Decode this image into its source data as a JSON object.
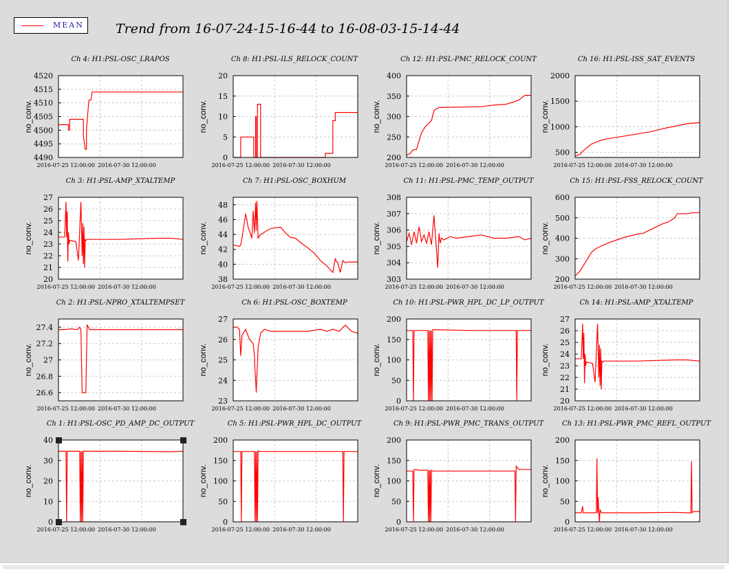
{
  "legend": {
    "label": "MEAN",
    "color": "#ff0000"
  },
  "title": "Trend from 16-07-24-15-16-44 to 16-08-03-15-14-44",
  "chart_data": [
    {
      "type": "line",
      "channel": "Ch 4: H1:PSL-OSC_LRAPOS",
      "ylabel": "no_conv.",
      "yticks": [
        "4520",
        "4515",
        "4510",
        "4505",
        "4500",
        "4495",
        "4490"
      ],
      "ylim": [
        4490,
        4520
      ],
      "xticks": [
        "2016-07-25 12:00:00",
        "2016-07-30 12:00:00"
      ],
      "series": [
        {
          "color": "#ff0000",
          "x": [
            0,
            0.08,
            0.08,
            0.09,
            0.09,
            0.1,
            0.1,
            0.2,
            0.2,
            0.215,
            0.225,
            0.225,
            0.235,
            0.245,
            0.26,
            0.27,
            0.27,
            1
          ],
          "y": [
            4502,
            4502,
            4500,
            4500,
            4504,
            4504,
            4504,
            4504,
            4498,
            4493,
            4493,
            4500,
            4506,
            4511,
            4511,
            4514,
            4514,
            4514
          ]
        }
      ]
    },
    {
      "type": "line",
      "channel": "Ch 8: H1:PSL-ILS_RELOCK_COUNT",
      "ylabel": "no_conv.",
      "yticks": [
        "20",
        "15",
        "10",
        "5",
        "0"
      ],
      "ylim": [
        0,
        20
      ],
      "xticks": [
        "2016-07-25 12:00:00",
        "2016-07-30 12:00:00"
      ],
      "series": [
        {
          "color": "#ff0000",
          "x": [
            0,
            0.06,
            0.06,
            0.165,
            0.165,
            0.18,
            0.18,
            0.185,
            0.185,
            0.195,
            0.195,
            0.22,
            0.22,
            0.74,
            0.74,
            0.8,
            0.8,
            0.82,
            0.82,
            1
          ],
          "y": [
            0,
            0,
            5,
            5,
            0,
            0,
            10,
            10,
            0,
            0,
            13,
            13,
            0,
            0,
            1,
            1,
            9,
            9,
            11,
            11
          ]
        }
      ]
    },
    {
      "type": "line",
      "channel": "Ch 12: H1:PSL-PMC_RELOCK_COUNT",
      "ylabel": "no_conv.",
      "yticks": [
        "400",
        "350",
        "300",
        "250",
        "200"
      ],
      "ylim": [
        200,
        400
      ],
      "xticks": [
        "2016-07-25 12:00:00",
        "2016-07-30 12:00:00"
      ],
      "series": [
        {
          "color": "#ff0000",
          "x": [
            0,
            0.03,
            0.05,
            0.08,
            0.1,
            0.12,
            0.15,
            0.2,
            0.22,
            0.26,
            0.6,
            0.7,
            0.8,
            0.85,
            0.9,
            0.95,
            1
          ],
          "y": [
            205,
            210,
            218,
            220,
            240,
            260,
            275,
            290,
            315,
            322,
            324,
            328,
            330,
            335,
            340,
            352,
            352
          ]
        }
      ]
    },
    {
      "type": "line",
      "channel": "Ch 16: H1:PSL-ISS_SAT_EVENTS",
      "ylabel": "no_conv.",
      "yticks": [
        "2000",
        "1500",
        "1000",
        "500"
      ],
      "ylim": [
        400,
        2000
      ],
      "xticks": [
        "2016-07-25 12:00:00",
        "2016-07-30 12:00:00"
      ],
      "series": [
        {
          "color": "#ff0000",
          "x": [
            0,
            0.04,
            0.06,
            0.08,
            0.1,
            0.13,
            0.17,
            0.2,
            0.25,
            0.3,
            0.4,
            0.5,
            0.6,
            0.7,
            0.8,
            0.9,
            1
          ],
          "y": [
            430,
            460,
            520,
            560,
            600,
            660,
            700,
            730,
            760,
            780,
            820,
            860,
            900,
            960,
            1010,
            1060,
            1080
          ]
        }
      ]
    },
    {
      "type": "line",
      "channel": "Ch 3: H1:PSL-AMP_XTALTEMP",
      "ylabel": "no_conv.",
      "yticks": [
        "27",
        "26",
        "25",
        "24",
        "23",
        "22",
        "21",
        "20"
      ],
      "ylim": [
        20,
        27
      ],
      "xticks": [
        "2016-07-25 12:00:00",
        "2016-07-30 12:00:00"
      ],
      "series": [
        {
          "color": "#ff0000",
          "x": [
            0,
            0.05,
            0.06,
            0.065,
            0.07,
            0.075,
            0.08,
            0.085,
            0.09,
            0.1,
            0.14,
            0.16,
            0.18,
            0.19,
            0.195,
            0.2,
            0.205,
            0.21,
            0.215,
            0.22,
            0.23,
            0.5,
            0.8,
            0.9,
            1
          ],
          "y": [
            23.6,
            23.6,
            26.6,
            23.6,
            25.8,
            21.5,
            24,
            23,
            23.3,
            23.3,
            23.2,
            21.6,
            26.6,
            22,
            24.8,
            21.3,
            24.5,
            21,
            23.4,
            23.3,
            23.4,
            23.4,
            23.5,
            23.5,
            23.4
          ]
        }
      ]
    },
    {
      "type": "line",
      "channel": "Ch 7: H1:PSL-OSC_BOXHUM",
      "ylabel": "no_conv.",
      "yticks": [
        "48",
        "46",
        "44",
        "42",
        "40",
        "38"
      ],
      "ylim": [
        38,
        49
      ],
      "xticks": [
        "2016-07-25 12:00:00",
        "2016-07-30 12:00:00"
      ],
      "series": [
        {
          "color": "#ff0000",
          "x": [
            0,
            0.02,
            0.05,
            0.06,
            0.08,
            0.1,
            0.12,
            0.15,
            0.16,
            0.17,
            0.18,
            0.185,
            0.19,
            0.2,
            0.22,
            0.3,
            0.38,
            0.42,
            0.46,
            0.5,
            0.55,
            0.6,
            0.65,
            0.7,
            0.75,
            0.8,
            0.82,
            0.83,
            0.84,
            0.86,
            0.88,
            0.9,
            0.92,
            1
          ],
          "y": [
            42.6,
            42.5,
            42.4,
            42.6,
            44.5,
            46.8,
            45,
            43.5,
            47.2,
            44.2,
            48.3,
            44.5,
            48.5,
            43.5,
            44,
            44.8,
            45,
            44.2,
            43.6,
            43.5,
            42.8,
            42.2,
            41.5,
            40.5,
            39.8,
            38.9,
            40.8,
            40.3,
            40.2,
            38.9,
            40.5,
            40.2,
            40.3,
            40.3
          ]
        }
      ]
    },
    {
      "type": "line",
      "channel": "Ch 11: H1:PSL-PMC_TEMP_OUTPUT",
      "ylabel": "no_conv.",
      "yticks": [
        "308",
        "307",
        "306",
        "305",
        "304",
        "303"
      ],
      "ylim": [
        303,
        308
      ],
      "xticks": [
        "2016-07-25 12:00:00",
        "2016-07-30 12:00:00"
      ],
      "series": [
        {
          "color": "#ff0000",
          "x": [
            0,
            0.02,
            0.04,
            0.06,
            0.08,
            0.1,
            0.12,
            0.14,
            0.16,
            0.18,
            0.2,
            0.22,
            0.24,
            0.25,
            0.26,
            0.27,
            0.28,
            0.3,
            0.35,
            0.4,
            0.5,
            0.6,
            0.7,
            0.8,
            0.9,
            0.95,
            1
          ],
          "y": [
            305.3,
            305.8,
            305.1,
            305.9,
            305.2,
            306.2,
            305.3,
            305.7,
            305.2,
            305.9,
            305.1,
            306.9,
            304.8,
            303.7,
            305.8,
            305.2,
            305.5,
            305.4,
            305.6,
            305.5,
            305.6,
            305.7,
            305.5,
            305.5,
            305.6,
            305.4,
            305.5
          ]
        }
      ]
    },
    {
      "type": "line",
      "channel": "Ch 15: H1:PSL-FSS_RELOCK_COUNT",
      "ylabel": "no_conv.",
      "yticks": [
        "600",
        "500",
        "400",
        "300",
        "200"
      ],
      "ylim": [
        200,
        600
      ],
      "xticks": [
        "2016-07-25 12:00:00",
        "2016-07-30 12:00:00"
      ],
      "series": [
        {
          "color": "#ff0000",
          "x": [
            0,
            0.04,
            0.07,
            0.1,
            0.13,
            0.17,
            0.22,
            0.28,
            0.35,
            0.4,
            0.5,
            0.55,
            0.6,
            0.7,
            0.75,
            0.8,
            0.82,
            0.9,
            0.95,
            1
          ],
          "y": [
            215,
            240,
            270,
            300,
            330,
            350,
            365,
            380,
            395,
            405,
            420,
            425,
            440,
            470,
            480,
            500,
            520,
            520,
            525,
            525
          ]
        }
      ]
    },
    {
      "type": "line",
      "channel": "Ch 2: H1:PSL-NPRO_XTALTEMPSET",
      "ylabel": "no_conv.",
      "yticks": [
        "27.4",
        "27.2",
        "27",
        "26.8",
        "26.6"
      ],
      "ylim": [
        26.5,
        27.5
      ],
      "xticks": [
        "2016-07-25 12:00:00",
        "2016-07-30 12:00:00"
      ],
      "series": [
        {
          "color": "#ff0000",
          "x": [
            0,
            0.05,
            0.1,
            0.15,
            0.17,
            0.18,
            0.19,
            0.2,
            0.22,
            0.23,
            0.25,
            0.3,
            0.5,
            0.7,
            0.8,
            0.85,
            0.9,
            1
          ],
          "y": [
            27.37,
            27.37,
            27.38,
            27.37,
            27.4,
            27.37,
            26.6,
            26.6,
            26.6,
            27.43,
            27.37,
            27.37,
            27.37,
            27.37,
            27.37,
            27.37,
            27.37,
            27.37
          ]
        }
      ]
    },
    {
      "type": "line",
      "channel": "Ch 6: H1:PSL-OSC_BOXTEMP",
      "ylabel": "no_conv.",
      "yticks": [
        "27",
        "26",
        "25",
        "24",
        "23"
      ],
      "ylim": [
        23,
        27
      ],
      "xticks": [
        "2016-07-25 12:00:00",
        "2016-07-30 12:00:00"
      ],
      "series": [
        {
          "color": "#ff0000",
          "x": [
            0,
            0.03,
            0.05,
            0.06,
            0.07,
            0.08,
            0.1,
            0.13,
            0.16,
            0.17,
            0.175,
            0.18,
            0.185,
            0.19,
            0.2,
            0.22,
            0.25,
            0.3,
            0.4,
            0.5,
            0.6,
            0.7,
            0.75,
            0.8,
            0.85,
            0.9,
            0.95,
            1
          ],
          "y": [
            26.6,
            26.6,
            26.5,
            25.2,
            26.2,
            26.3,
            26.5,
            26,
            25.8,
            25.2,
            24.5,
            24,
            23.4,
            24.2,
            25.6,
            26.3,
            26.5,
            26.4,
            26.4,
            26.4,
            26.4,
            26.5,
            26.4,
            26.5,
            26.4,
            26.7,
            26.4,
            26.3
          ]
        }
      ]
    },
    {
      "type": "line",
      "channel": "Ch 10: H1:PSL-PWR_HPL_DC_LP_OUTPUT",
      "ylabel": "no_conv.",
      "yticks": [
        "200",
        "150",
        "100",
        "50",
        "0"
      ],
      "ylim": [
        0,
        200
      ],
      "xticks": [
        "2016-07-25 12:00:00",
        "2016-07-30 12:00:00"
      ],
      "series": [
        {
          "color": "#ff0000",
          "x": [
            0,
            0.05,
            0.055,
            0.06,
            0.17,
            0.175,
            0.18,
            0.185,
            0.19,
            0.195,
            0.2,
            0.205,
            0.21,
            0.5,
            0.88,
            0.885,
            0.89,
            1
          ],
          "y": [
            172,
            172,
            0,
            172,
            172,
            0,
            172,
            0,
            172,
            0,
            172,
            0,
            174,
            172,
            172,
            0,
            172,
            172
          ]
        }
      ]
    },
    {
      "type": "line",
      "channel": "Ch 14: H1:PSL-AMP_XTALTEMP",
      "ylabel": "no_conv.",
      "yticks": [
        "27",
        "26",
        "25",
        "24",
        "23",
        "22",
        "21",
        "20"
      ],
      "ylim": [
        20,
        27
      ],
      "xticks": [
        "2016-07-25 12:00:00",
        "2016-07-30 12:00:00"
      ],
      "series": [
        {
          "color": "#ff0000",
          "x": [
            0,
            0.05,
            0.06,
            0.065,
            0.07,
            0.075,
            0.08,
            0.085,
            0.09,
            0.1,
            0.14,
            0.16,
            0.18,
            0.19,
            0.195,
            0.2,
            0.205,
            0.21,
            0.215,
            0.22,
            0.23,
            0.5,
            0.8,
            0.9,
            1
          ],
          "y": [
            23.6,
            23.6,
            26.6,
            23.6,
            25.8,
            21.5,
            24,
            23,
            23.3,
            23.3,
            23.2,
            21.6,
            26.6,
            22,
            24.8,
            21.3,
            24.5,
            21,
            23.4,
            23.3,
            23.4,
            23.4,
            23.5,
            23.5,
            23.4
          ]
        }
      ]
    },
    {
      "type": "line",
      "channel": "Ch 1: H1:PSL-OSC_PD_AMP_DC_OUTPUT",
      "ylabel": "no_conv.",
      "yticks": [
        "40",
        "30",
        "20",
        "10",
        "0"
      ],
      "ylim": [
        0,
        40
      ],
      "xticks": [
        "2016-07-25 12:00:00",
        "2016-07-30 12:00:00"
      ],
      "series": [
        {
          "color": "#ff0000",
          "x": [
            0,
            0.06,
            0.065,
            0.07,
            0.17,
            0.175,
            0.18,
            0.185,
            0.19,
            0.195,
            0.2,
            0.21,
            0.5,
            0.9,
            1
          ],
          "y": [
            34.5,
            34.5,
            0,
            34.5,
            34.5,
            0,
            34.5,
            0,
            34.5,
            0,
            34.7,
            34.5,
            34.5,
            34.3,
            34.5
          ]
        }
      ]
    },
    {
      "type": "line",
      "channel": "Ch 5: H1:PSL-PWR_HPL_DC_OUTPUT",
      "ylabel": "no_conv.",
      "yticks": [
        "200",
        "150",
        "100",
        "50",
        "0"
      ],
      "ylim": [
        0,
        200
      ],
      "xticks": [
        "2016-07-25 12:00:00",
        "2016-07-30 12:00:00"
      ],
      "series": [
        {
          "color": "#ff0000",
          "x": [
            0,
            0.06,
            0.065,
            0.07,
            0.17,
            0.175,
            0.18,
            0.185,
            0.19,
            0.195,
            0.2,
            0.21,
            0.5,
            0.88,
            0.885,
            0.89,
            1
          ],
          "y": [
            172,
            172,
            0,
            172,
            172,
            0,
            172,
            0,
            172,
            0,
            174,
            172,
            172,
            172,
            0,
            172,
            172
          ]
        }
      ]
    },
    {
      "type": "line",
      "channel": "Ch 9: H1:PSL-PWR_PMC_TRANS_OUTPUT",
      "ylabel": "no_conv.",
      "yticks": [
        "200",
        "150",
        "100",
        "50",
        "0"
      ],
      "ylim": [
        0,
        200
      ],
      "xticks": [
        "2016-07-25 12:00:00",
        "2016-07-30 12:00:00"
      ],
      "series": [
        {
          "color": "#ff0000",
          "x": [
            0,
            0.05,
            0.055,
            0.06,
            0.1,
            0.17,
            0.175,
            0.18,
            0.185,
            0.19,
            0.195,
            0.2,
            0.21,
            0.4,
            0.6,
            0.8,
            0.87,
            0.875,
            0.88,
            0.9,
            1
          ],
          "y": [
            124,
            124,
            0,
            128,
            126,
            126,
            0,
            126,
            0,
            126,
            0,
            126,
            124,
            124,
            124,
            124,
            124,
            0,
            136,
            128,
            128
          ]
        }
      ]
    },
    {
      "type": "line",
      "channel": "Ch 13: H1:PSL-PWR_PMC_REFL_OUTPUT",
      "ylabel": "no_conv.",
      "yticks": [
        "200",
        "150",
        "100",
        "50",
        "0"
      ],
      "ylim": [
        0,
        200
      ],
      "xticks": [
        "2016-07-25 12:00:00",
        "2016-07-30 12:00:00"
      ],
      "series": [
        {
          "color": "#ff0000",
          "x": [
            0,
            0.05,
            0.06,
            0.065,
            0.07,
            0.17,
            0.175,
            0.18,
            0.185,
            0.19,
            0.195,
            0.2,
            0.21,
            0.5,
            0.8,
            0.9,
            0.93,
            0.935,
            0.94,
            0.95,
            1
          ],
          "y": [
            22,
            22,
            38,
            22,
            22,
            22,
            155,
            22,
            60,
            22,
            0,
            30,
            22,
            22,
            23,
            22,
            22,
            148,
            22,
            25,
            25
          ]
        }
      ]
    }
  ]
}
